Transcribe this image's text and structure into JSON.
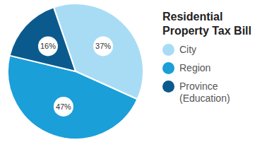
{
  "chart_data": {
    "type": "pie",
    "title": "Residential Property Tax Bill",
    "categories": [
      "City",
      "Region",
      "Province (Education)"
    ],
    "values": [
      37,
      47,
      16
    ],
    "value_labels": [
      "37%",
      "47%",
      "16%"
    ],
    "colors": [
      "#a8dcf5",
      "#1a9fd9",
      "#0b5a8e"
    ],
    "data_labels": true,
    "legend": "right"
  }
}
